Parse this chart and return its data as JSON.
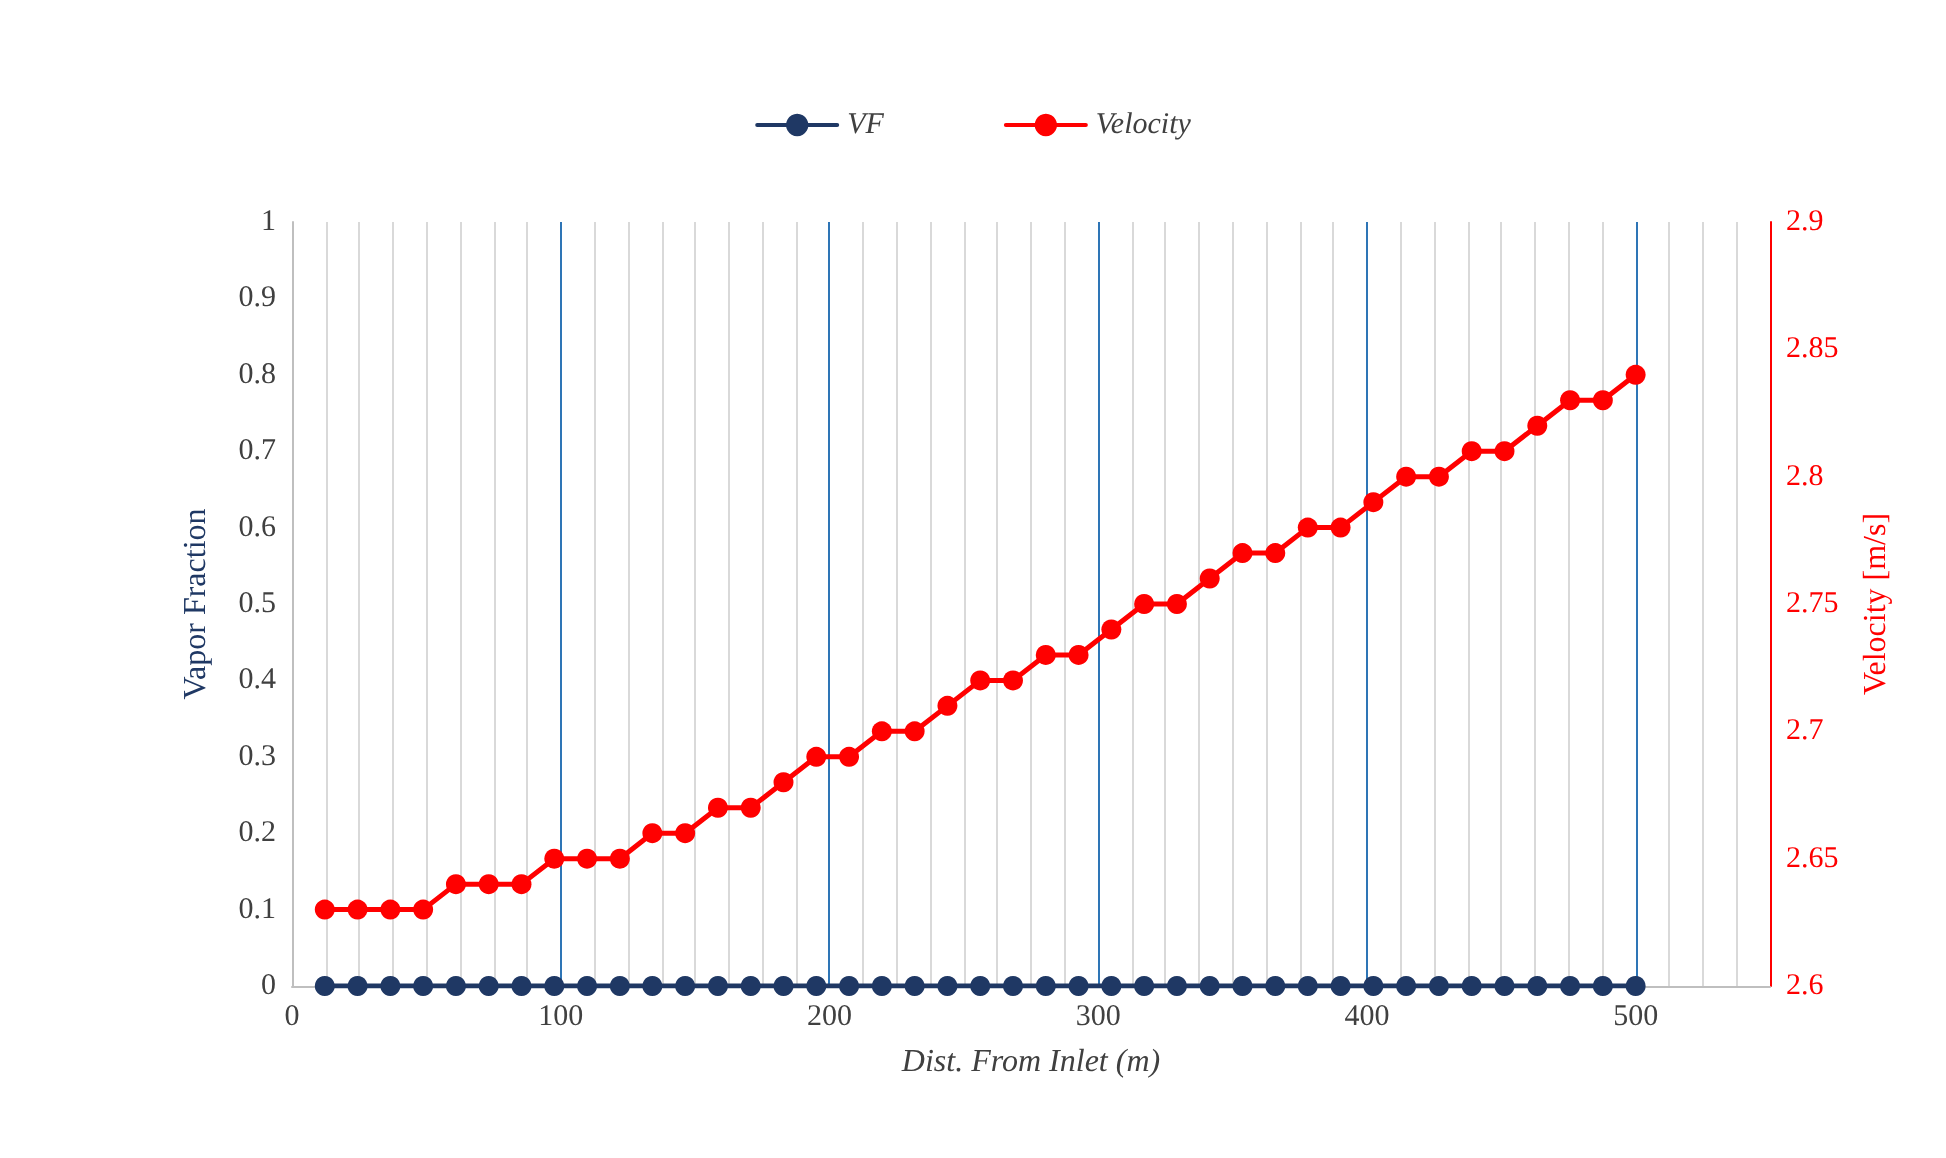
{
  "chart_data": {
    "type": "line",
    "xlabel": "Dist. From Inlet (m)",
    "ylabel": "Vapor Fraction",
    "y2label": "Velocity [m/s]",
    "x": [
      12.2,
      24.4,
      36.6,
      48.8,
      61,
      73.2,
      85.4,
      97.6,
      109.8,
      122,
      134.1,
      146.3,
      158.5,
      170.7,
      182.9,
      195.1,
      207.3,
      219.5,
      231.7,
      243.9,
      256.1,
      268.3,
      280.5,
      292.7,
      304.9,
      317.1,
      329.3,
      341.5,
      353.7,
      365.9,
      378,
      390.2,
      402.4,
      414.6,
      426.8,
      439,
      451.2,
      463.4,
      475.6,
      487.8,
      500
    ],
    "series": [
      {
        "name": "VF",
        "color": "#1f3864",
        "values": [
          0,
          0,
          0,
          0,
          0,
          0,
          0,
          0,
          0,
          0,
          0,
          0,
          0,
          0,
          0,
          0,
          0,
          0,
          0,
          0,
          0,
          0,
          0,
          0,
          0,
          0,
          0,
          0,
          0,
          0,
          0,
          0,
          0,
          0,
          0,
          0,
          0,
          0,
          0,
          0,
          0
        ]
      },
      {
        "name": "Velocity",
        "color": "#ff0000",
        "axis": "y2",
        "values": [
          2.63,
          2.63,
          2.63,
          2.63,
          2.64,
          2.64,
          2.64,
          2.65,
          2.65,
          2.65,
          2.66,
          2.66,
          2.67,
          2.67,
          2.68,
          2.69,
          2.69,
          2.7,
          2.7,
          2.71,
          2.72,
          2.72,
          2.73,
          2.73,
          2.74,
          2.75,
          2.75,
          2.76,
          2.77,
          2.77,
          2.78,
          2.78,
          2.79,
          2.8,
          2.8,
          2.81,
          2.81,
          2.82,
          2.83,
          2.83,
          2.84
        ]
      }
    ],
    "xlim": [
      0,
      550
    ],
    "xticks": [
      0,
      100,
      200,
      300,
      400,
      500
    ],
    "ylim": [
      0,
      1
    ],
    "yticks": [
      0,
      0.1,
      0.2,
      0.3,
      0.4,
      0.5,
      0.6,
      0.7,
      0.8,
      0.9,
      1
    ],
    "y2lim": [
      2.6,
      2.9
    ],
    "y2ticks": [
      2.6,
      2.65,
      2.7,
      2.75,
      2.8,
      2.85,
      2.9
    ],
    "grid": "x",
    "legend": "top",
    "marker": "circle",
    "line_style": "solid"
  }
}
